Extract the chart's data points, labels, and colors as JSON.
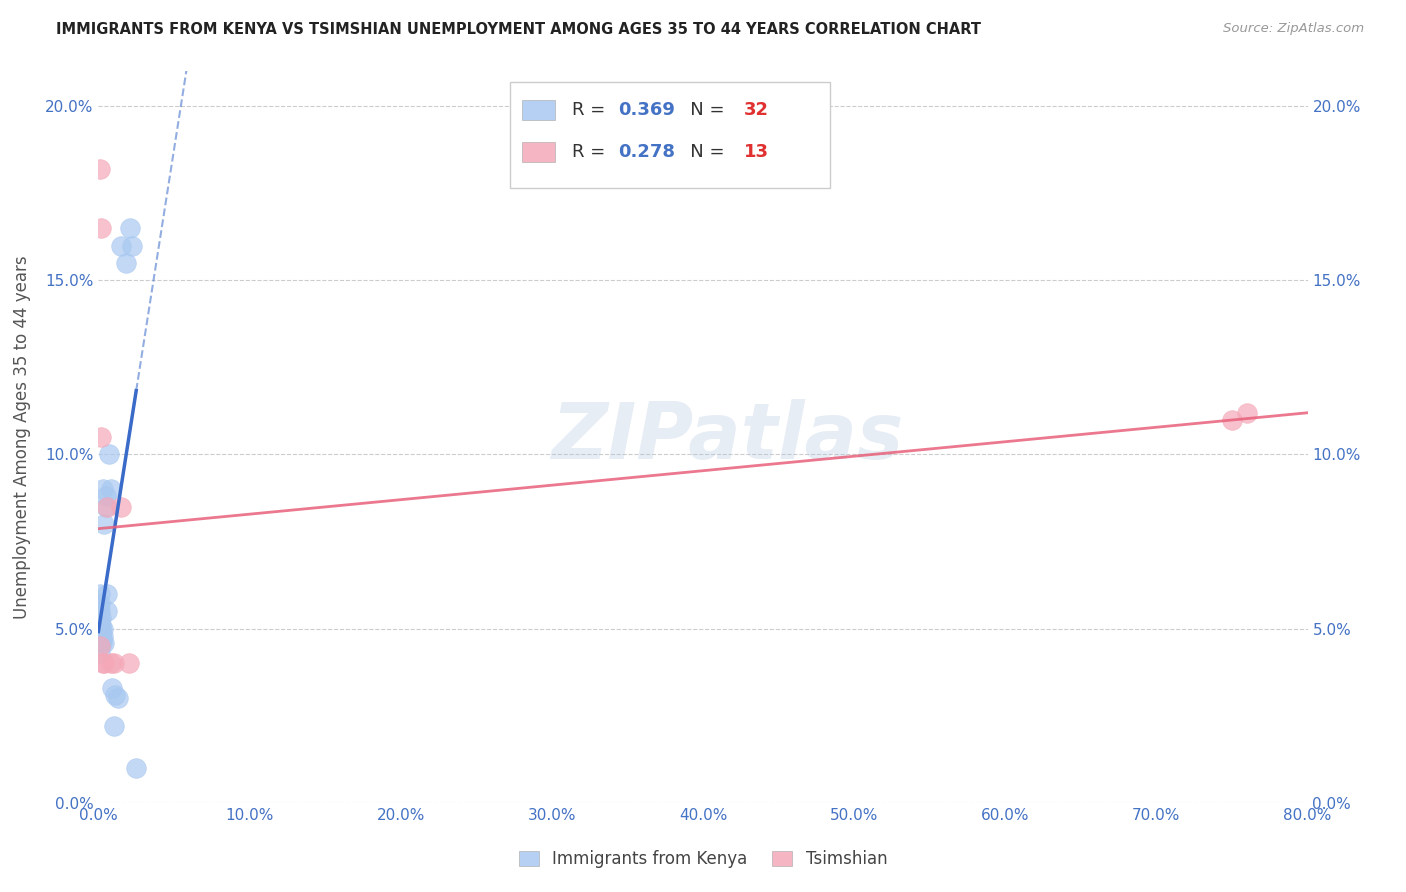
{
  "title": "IMMIGRANTS FROM KENYA VS TSIMSHIAN UNEMPLOYMENT AMONG AGES 35 TO 44 YEARS CORRELATION CHART",
  "source": "Source: ZipAtlas.com",
  "ylabel": "Unemployment Among Ages 35 to 44 years",
  "xlim": [
    0.0,
    0.8
  ],
  "ylim": [
    0.0,
    0.21
  ],
  "xticks": [
    0.0,
    0.1,
    0.2,
    0.3,
    0.4,
    0.5,
    0.6,
    0.7,
    0.8
  ],
  "xticklabels": [
    "0.0%",
    "10.0%",
    "20.0%",
    "30.0%",
    "40.0%",
    "50.0%",
    "60.0%",
    "70.0%",
    "80.0%"
  ],
  "yticks": [
    0.0,
    0.05,
    0.1,
    0.15,
    0.2
  ],
  "yticklabels": [
    "0.0%",
    "5.0%",
    "10.0%",
    "15.0%",
    "20.0%"
  ],
  "kenya_color": "#A8C8F0",
  "tsimshian_color": "#F4A8B8",
  "kenya_line_color": "#3A6BC8",
  "tsimshian_line_color": "#E8607A",
  "R_color": "#4472C4",
  "N_color": "#E03030",
  "kenya_R": "0.369",
  "kenya_N": "32",
  "tsimshian_R": "0.278",
  "tsimshian_N": "13",
  "watermark": "ZIPatlas",
  "legend_label_kenya": "Immigrants from Kenya",
  "legend_label_tsimshian": "Tsimshian",
  "kenya_x": [
    0.0005,
    0.001,
    0.001,
    0.0012,
    0.0013,
    0.0015,
    0.0018,
    0.002,
    0.002,
    0.0022,
    0.0025,
    0.003,
    0.003,
    0.0032,
    0.004,
    0.004,
    0.005,
    0.005,
    0.006,
    0.006,
    0.007,
    0.008,
    0.009,
    0.01,
    0.011,
    0.013,
    0.015,
    0.018,
    0.021,
    0.022,
    0.025,
    0.001
  ],
  "kenya_y": [
    0.051,
    0.052,
    0.055,
    0.057,
    0.06,
    0.049,
    0.051,
    0.05,
    0.053,
    0.047,
    0.046,
    0.048,
    0.05,
    0.09,
    0.046,
    0.08,
    0.085,
    0.088,
    0.055,
    0.06,
    0.1,
    0.09,
    0.033,
    0.022,
    0.031,
    0.03,
    0.16,
    0.155,
    0.165,
    0.16,
    0.01,
    0.043
  ],
  "tsimshian_x": [
    0.001,
    0.001,
    0.002,
    0.002,
    0.003,
    0.004,
    0.006,
    0.008,
    0.01,
    0.015,
    0.02,
    0.75,
    0.76
  ],
  "tsimshian_y": [
    0.182,
    0.045,
    0.165,
    0.105,
    0.04,
    0.04,
    0.085,
    0.04,
    0.04,
    0.085,
    0.04,
    0.11,
    0.112
  ]
}
